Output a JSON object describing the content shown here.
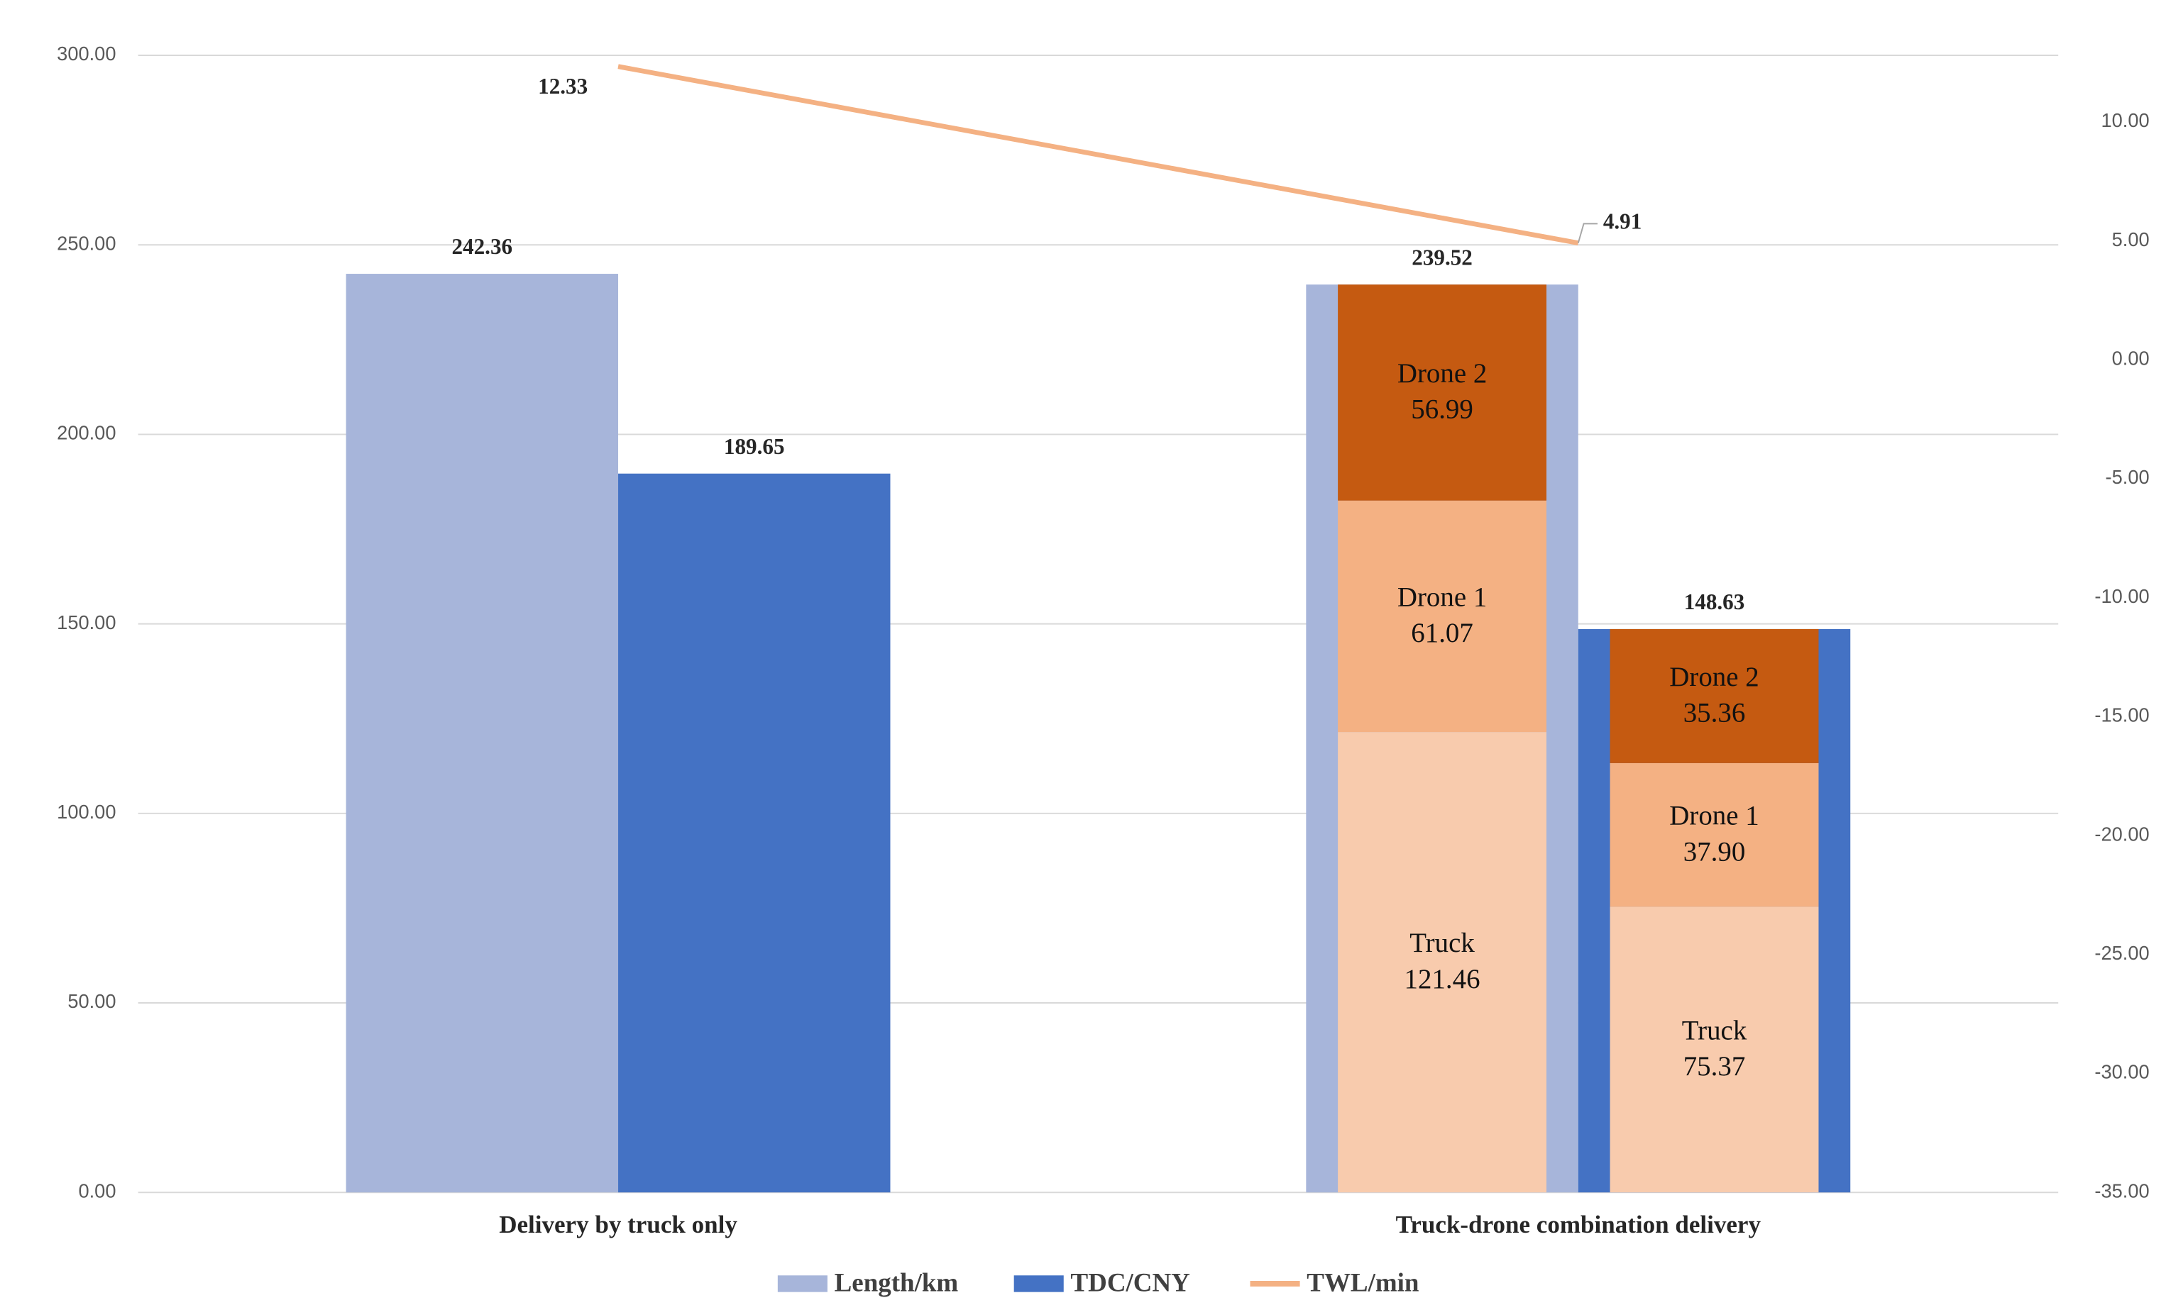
{
  "chart_data": {
    "type": "bar",
    "categories": [
      "Delivery by truck only",
      "Truck-drone combination delivery"
    ],
    "series": [
      {
        "name": "Length/km",
        "color": "#a7b5da",
        "values": [
          242.36,
          239.52
        ],
        "value_labels": [
          "242.36",
          "239.52"
        ]
      },
      {
        "name": "TDC/CNY",
        "color": "#4472c4",
        "values": [
          189.65,
          148.63
        ],
        "value_labels": [
          "189.65",
          "148.63"
        ]
      },
      {
        "name": "TWL/min",
        "type": "line",
        "axis": "y2",
        "color": "#f4b183",
        "values": [
          12.33,
          4.91
        ],
        "value_labels": [
          "12.33",
          "4.91"
        ]
      }
    ],
    "stacks": [
      {
        "names": [
          "Truck",
          "Drone 1",
          "Drone 2"
        ],
        "values": [
          121.46,
          61.07,
          56.99
        ],
        "value_labels": [
          "121.46",
          "61.07",
          "56.99"
        ],
        "colors": [
          "#f8cbad",
          "#f4b183",
          "#c55a11"
        ]
      },
      {
        "names": [
          "Truck",
          "Drone 1",
          "Drone 2"
        ],
        "values": [
          75.37,
          37.9,
          35.36
        ],
        "value_labels": [
          "75.37",
          "37.90",
          "35.36"
        ],
        "colors": [
          "#f8cbad",
          "#f4b183",
          "#c55a11"
        ]
      }
    ],
    "ylim": [
      0,
      300
    ],
    "yticks": [
      {
        "value": 0,
        "label": "0.00"
      },
      {
        "value": 50,
        "label": "50.00"
      },
      {
        "value": 100,
        "label": "100.00"
      },
      {
        "value": 150,
        "label": "150.00"
      },
      {
        "value": 200,
        "label": "200.00"
      },
      {
        "value": 250,
        "label": "250.00"
      },
      {
        "value": 300,
        "label": "300.00"
      }
    ],
    "y2lim": [
      -35,
      12.8
    ],
    "y2ticks": [
      {
        "value": -35,
        "label": "-35.00"
      },
      {
        "value": -30,
        "label": "-30.00"
      },
      {
        "value": -25,
        "label": "-25.00"
      },
      {
        "value": -20,
        "label": "-20.00"
      },
      {
        "value": -15,
        "label": "-15.00"
      },
      {
        "value": -10,
        "label": "-10.00"
      },
      {
        "value": -5,
        "label": "-5.00"
      },
      {
        "value": 0,
        "label": "0.00"
      },
      {
        "value": 5,
        "label": "5.00"
      },
      {
        "value": 10,
        "label": "10.00"
      }
    ],
    "grid": true,
    "legend": "bottom"
  }
}
